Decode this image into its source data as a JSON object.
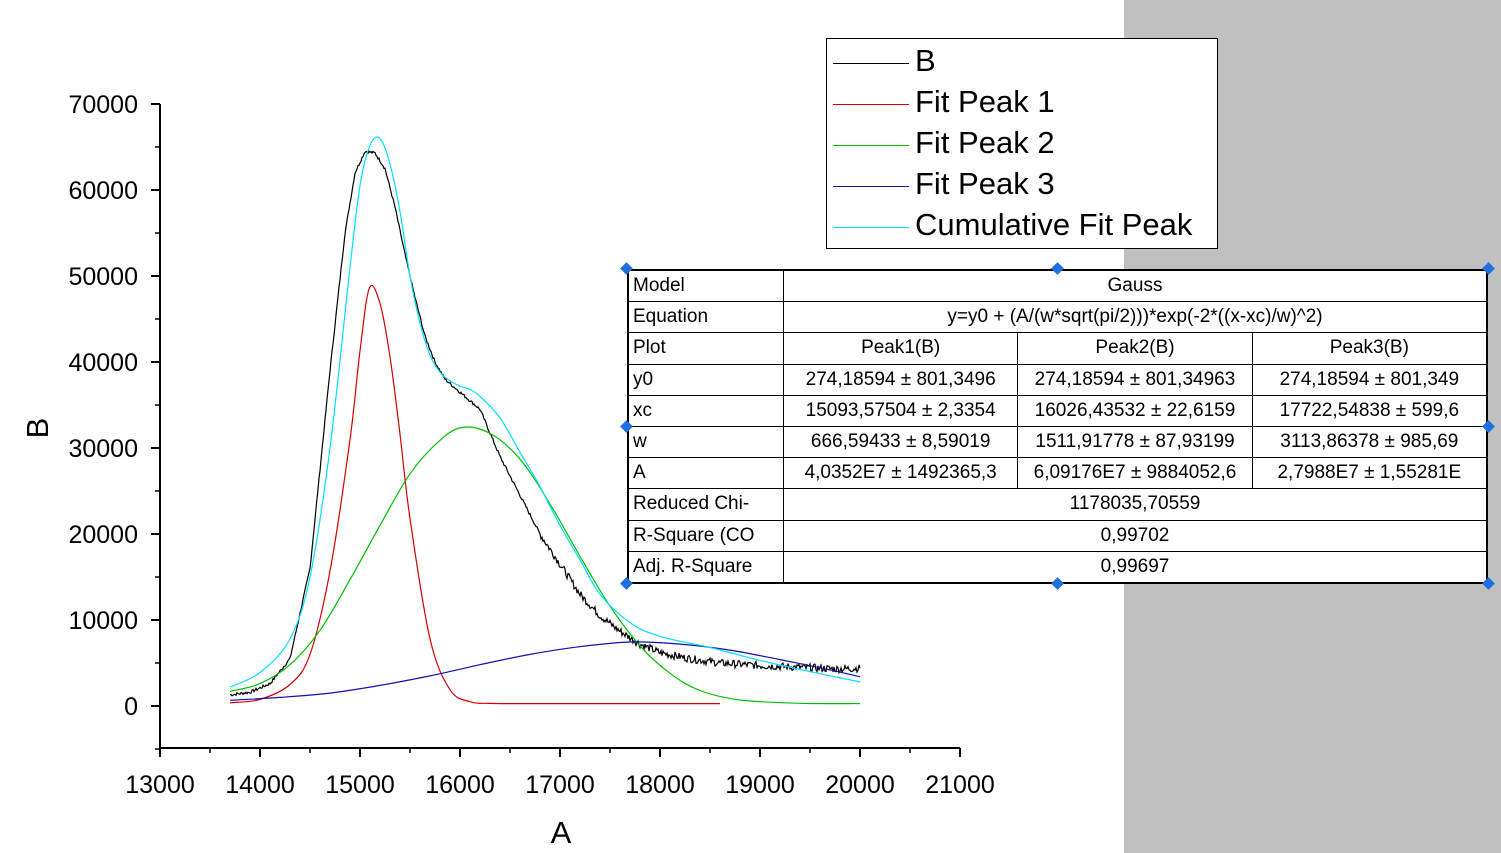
{
  "chart_data": {
    "type": "line",
    "title": "",
    "xlabel": "A",
    "ylabel": "B",
    "xlim": [
      13000,
      21000
    ],
    "ylim": [
      -5000,
      70000
    ],
    "xticks": [
      13000,
      14000,
      15000,
      16000,
      17000,
      18000,
      19000,
      20000,
      21000
    ],
    "yticks": [
      0,
      10000,
      20000,
      30000,
      40000,
      50000,
      60000,
      70000
    ],
    "grid": false,
    "legend_position": "top-right",
    "series": [
      {
        "name": "B",
        "color": "#000000",
        "x": [
          13700,
          13900,
          14100,
          14300,
          14500,
          14700,
          14850,
          14950,
          15050,
          15150,
          15250,
          15350,
          15450,
          15550,
          15650,
          15750,
          15850,
          15950,
          16050,
          16200,
          16400,
          16600,
          16800,
          17000,
          17200,
          17400,
          17600,
          17800,
          18000,
          18300,
          18600,
          19000,
          19400,
          19800,
          20000
        ],
        "y": [
          1300,
          1600,
          2600,
          5500,
          16000,
          39000,
          55000,
          62000,
          64500,
          64300,
          62500,
          58000,
          52500,
          47500,
          43000,
          40000,
          38000,
          37000,
          36000,
          34500,
          29000,
          24500,
          20000,
          16500,
          13000,
          10500,
          8700,
          7200,
          6200,
          5500,
          5000,
          4700,
          4500,
          4300,
          4400
        ]
      },
      {
        "name": "Fit Peak 1",
        "color": "#d40000",
        "x": [
          13700,
          14000,
          14300,
          14500,
          14700,
          14900,
          15000,
          15094,
          15200,
          15300,
          15400,
          15500,
          15700,
          15900,
          16100,
          16300,
          16600,
          17000,
          18000,
          18600
        ],
        "y": [
          370,
          770,
          2500,
          6000,
          15700,
          31000,
          41300,
          48600,
          46800,
          40600,
          31600,
          21800,
          7800,
          1900,
          500,
          300,
          274,
          274,
          274,
          274
        ]
      },
      {
        "name": "Fit Peak 2",
        "color": "#00c000",
        "x": [
          13700,
          14000,
          14300,
          14600,
          14900,
          15200,
          15500,
          15800,
          16026,
          16300,
          16600,
          16900,
          17200,
          17500,
          17800,
          18100,
          18400,
          18800,
          19400,
          20000
        ],
        "y": [
          1700,
          2600,
          4800,
          8800,
          14700,
          21000,
          27000,
          30900,
          32400,
          31700,
          28700,
          23500,
          17400,
          11600,
          7000,
          3800,
          1800,
          700,
          310,
          280
        ]
      },
      {
        "name": "Fit Peak 3",
        "color": "#1010b0",
        "x": [
          13700,
          14200,
          14700,
          15200,
          15700,
          16200,
          16700,
          17200,
          17723,
          18200,
          18700,
          19200,
          19700,
          20000
        ],
        "y": [
          660,
          1000,
          1500,
          2400,
          3500,
          4800,
          6000,
          6900,
          7450,
          7200,
          6500,
          5400,
          4200,
          3400
        ]
      },
      {
        "name": "Cumulative Fit Peak",
        "color": "#00e0ff",
        "x": [
          13700,
          14000,
          14300,
          14500,
          14700,
          14900,
          15000,
          15100,
          15200,
          15300,
          15400,
          15500,
          15600,
          15700,
          15800,
          15900,
          16000,
          16100,
          16200,
          16400,
          16600,
          16800,
          17000,
          17200,
          17400,
          17700,
          18000,
          18500,
          19000,
          19500,
          20000
        ],
        "y": [
          2200,
          3900,
          7800,
          15000,
          30000,
          51000,
          60500,
          65200,
          66000,
          63000,
          57500,
          50000,
          44500,
          40800,
          38800,
          37800,
          37200,
          36800,
          36000,
          33500,
          29500,
          25500,
          21000,
          17000,
          13000,
          9700,
          8100,
          6800,
          5300,
          4000,
          2800
        ]
      }
    ]
  },
  "legend": {
    "items": [
      {
        "label": "B",
        "color": "#000000"
      },
      {
        "label": "Fit Peak 1",
        "color": "#d40000"
      },
      {
        "label": "Fit Peak 2",
        "color": "#00c000"
      },
      {
        "label": "Fit Peak 3",
        "color": "#1010b0"
      },
      {
        "label": "Cumulative Fit Peak",
        "color": "#00e0ff"
      }
    ]
  },
  "stats_table": {
    "model_label": "Model",
    "model_value": "Gauss",
    "equation_label": "Equation",
    "equation_value": "y=y0 + (A/(w*sqrt(pi/2)))*exp(-2*((x-xc)/w)^2)",
    "plot_label": "Plot",
    "plot_cols": [
      "Peak1(B)",
      "Peak2(B)",
      "Peak3(B)"
    ],
    "rows": [
      {
        "label": "y0",
        "values": [
          "274,18594 ± 801,3496",
          "274,18594 ± 801,34963",
          "274,18594 ± 801,349"
        ]
      },
      {
        "label": "xc",
        "values": [
          "15093,57504 ± 2,3354",
          "16026,43532 ± 22,6159",
          "17722,54838 ± 599,6"
        ]
      },
      {
        "label": "w",
        "values": [
          "666,59433 ± 8,59019",
          "1511,91778 ± 87,93199",
          "3113,86378 ± 985,69"
        ]
      },
      {
        "label": "A",
        "values": [
          "4,0352E7 ± 1492365,3",
          "6,09176E7 ± 9884052,6",
          "2,7988E7 ± 1,55281E"
        ]
      }
    ],
    "chi_label": "Reduced Chi-",
    "chi_value": "1178035,70559",
    "rsq_label": "R-Square (CO",
    "rsq_value": "0,99702",
    "adjrsq_label": "Adj. R-Square",
    "adjrsq_value": "0,99697"
  },
  "colors": {
    "background": "#ffffff",
    "panel": "#c0c0c0",
    "selection": "#1e6fe0"
  }
}
